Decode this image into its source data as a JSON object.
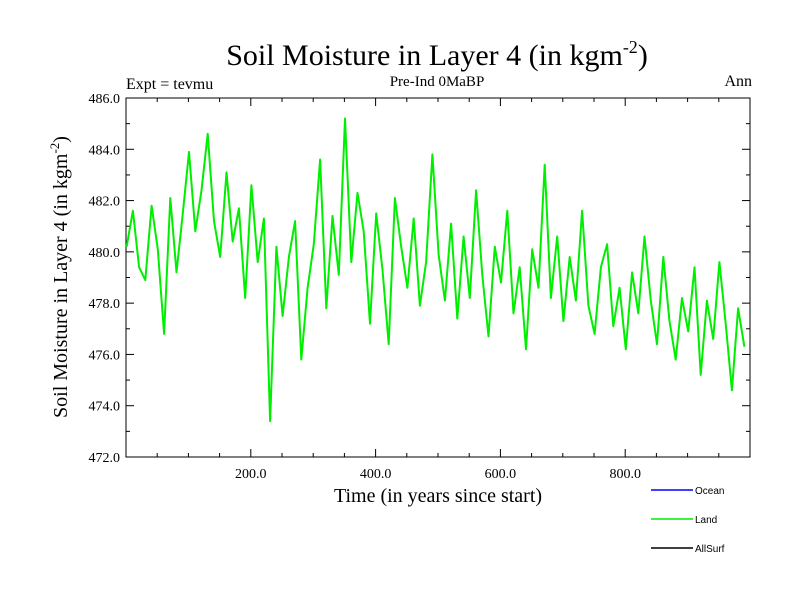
{
  "chart_data": {
    "type": "line",
    "title": "Soil Moisture in Layer 4 (in kgm",
    "title_sup": "-2",
    "title_end": ")",
    "left_subtitle": "Expt = tevmu",
    "center_subtitle": "Pre-Ind 0MaBP",
    "right_subtitle": "Ann",
    "xlabel": "Time (in years since start)",
    "ylabel": "Soil Moisture in Layer 4 (in kgm",
    "ylabel_sup": "-2",
    "ylabel_end": ")",
    "xlim": [
      0,
      1000
    ],
    "ylim": [
      472.0,
      486.0
    ],
    "xticks": [
      200,
      400,
      600,
      800
    ],
    "xtick_labels": [
      "200.0",
      "400.0",
      "600.0",
      "800.0"
    ],
    "yticks": [
      472,
      474,
      476,
      478,
      480,
      482,
      484,
      486
    ],
    "ytick_labels": [
      "472.0",
      "474.0",
      "476.0",
      "478.0",
      "480.0",
      "482.0",
      "484.0",
      "486.0"
    ],
    "legend": [
      {
        "name": "Ocean",
        "color": "#0000ff"
      },
      {
        "name": "Land",
        "color": "#00ee00"
      },
      {
        "name": "AllSurf",
        "color": "#000000"
      }
    ],
    "series": [
      {
        "name": "Land",
        "color": "#00ee00",
        "x_start": 1,
        "x_step": 10,
        "values": [
          480.2,
          481.6,
          479.4,
          478.9,
          481.8,
          480.1,
          476.8,
          482.1,
          479.2,
          481.5,
          483.9,
          480.8,
          482.4,
          484.6,
          481.2,
          479.8,
          483.1,
          480.4,
          481.7,
          478.2,
          482.6,
          479.6,
          481.3,
          473.4,
          480.2,
          477.5,
          479.8,
          481.2,
          475.8,
          478.6,
          480.3,
          483.6,
          477.8,
          481.4,
          479.1,
          485.2,
          479.6,
          482.3,
          480.8,
          477.2,
          481.5,
          479.3,
          476.4,
          482.1,
          480.2,
          478.6,
          481.3,
          477.9,
          479.6,
          483.8,
          479.9,
          478.1,
          481.1,
          477.4,
          480.6,
          478.2,
          482.4,
          479.1,
          476.7,
          480.2,
          478.8,
          481.6,
          477.6,
          479.4,
          476.2,
          480.1,
          478.6,
          483.4,
          478.2,
          480.6,
          477.3,
          479.8,
          478.1,
          481.6,
          477.9,
          476.8,
          479.4,
          480.3,
          477.1,
          478.6,
          476.2,
          479.2,
          477.6,
          480.6,
          478.1,
          476.4,
          479.8,
          477.3,
          475.8,
          478.2,
          476.9,
          479.4,
          475.2,
          478.1,
          476.6,
          479.6,
          477.2,
          474.6,
          477.8,
          476.3
        ]
      }
    ]
  }
}
